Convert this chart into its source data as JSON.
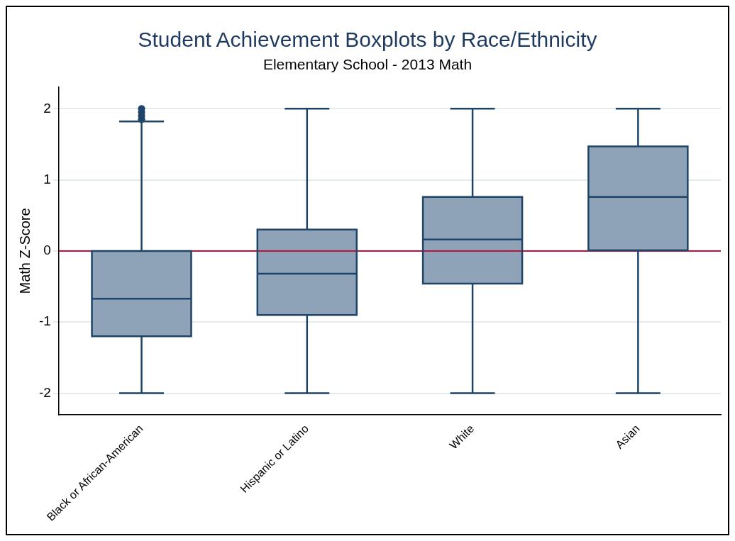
{
  "chart_data": {
    "type": "box",
    "title": "Student Achievement Boxplots by Race/Ethnicity",
    "subtitle": "Elementary School - 2013 Math",
    "ylabel": "Math Z-Score",
    "categories": [
      "Black or African-American",
      "Hispanic or Latino",
      "White",
      "Asian"
    ],
    "color": "#8ea3b8",
    "boxes": [
      {
        "low": -2,
        "q1": -1.2,
        "median": -0.67,
        "q3": 0,
        "high": 1.82,
        "outliers": [
          1.85,
          1.9,
          1.95,
          2
        ]
      },
      {
        "low": -2,
        "q1": -0.9,
        "median": -0.32,
        "q3": 0.3,
        "high": 2
      },
      {
        "low": -2,
        "q1": -0.46,
        "median": 0.16,
        "q3": 0.76,
        "high": 2
      },
      {
        "low": -2,
        "q1": 0.01,
        "median": 0.76,
        "q3": 1.47,
        "high": 2
      }
    ],
    "ylim": [
      -2.3,
      2.3
    ],
    "yticks": [
      -2,
      -1,
      0,
      1,
      2
    ],
    "grid": "y",
    "ref_lines": [
      {
        "axis": "y",
        "value": 0,
        "color": "#c0103a"
      }
    ]
  }
}
